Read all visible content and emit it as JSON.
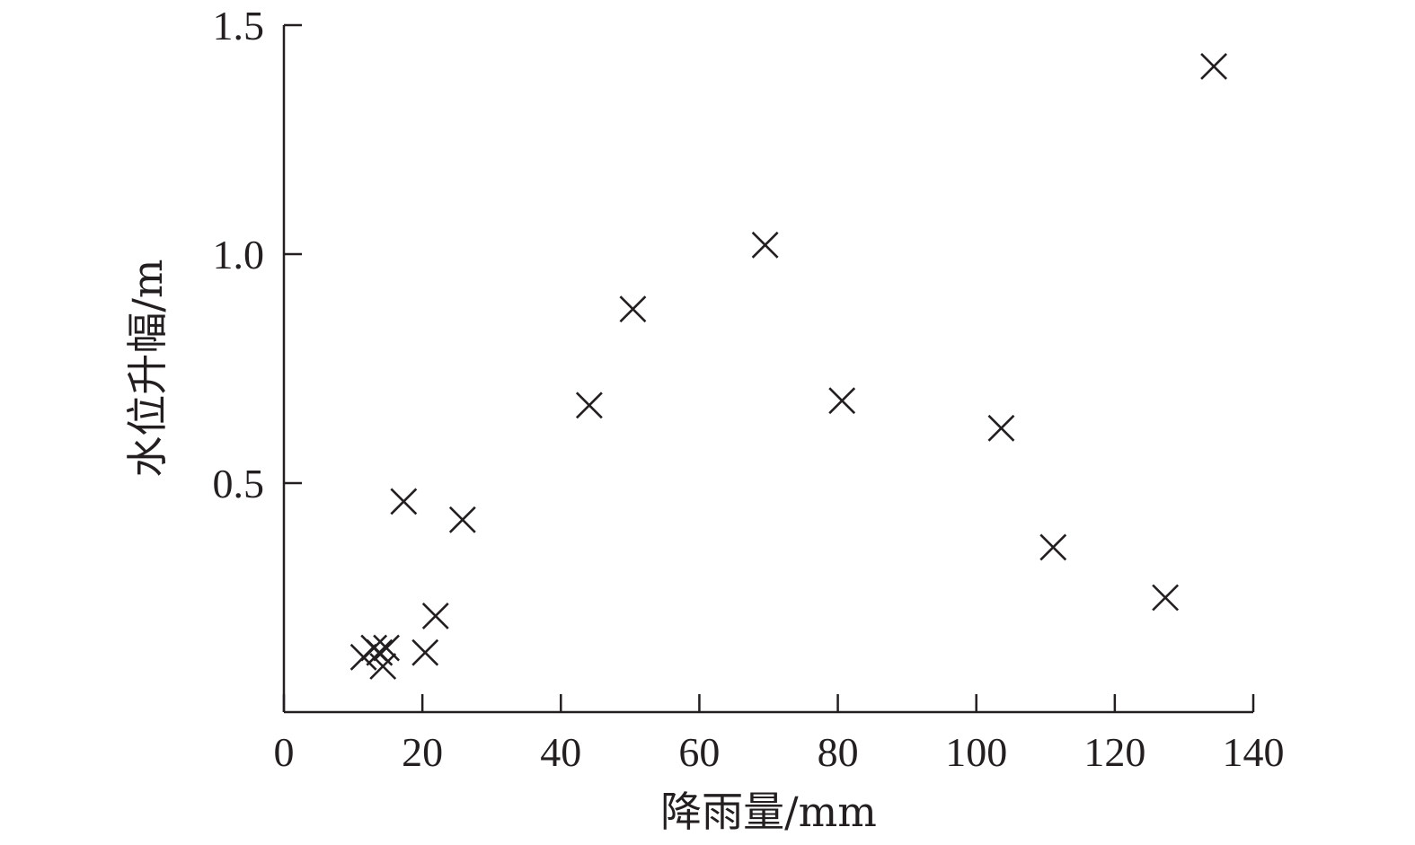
{
  "chart_data": {
    "type": "scatter",
    "title": "",
    "xlabel": "降雨量/mm",
    "ylabel": "水位升幅/m",
    "xlim": [
      0,
      140
    ],
    "ylim": [
      0,
      1.5
    ],
    "x_ticks": [
      0,
      20,
      40,
      60,
      80,
      100,
      120,
      140
    ],
    "x_tick_labels": [
      "0",
      "20",
      "40",
      "60",
      "80",
      "100",
      "120",
      "140"
    ],
    "y_ticks": [
      0.5,
      1.0,
      1.5
    ],
    "y_tick_labels": [
      "0.5",
      "1.0",
      "1.5"
    ],
    "grid": false,
    "marker": "x",
    "marker_color": "#231f20",
    "series": [
      {
        "points": [
          {
            "x": 11.5,
            "y": 0.12
          },
          {
            "x": 13.0,
            "y": 0.14
          },
          {
            "x": 13.8,
            "y": 0.13
          },
          {
            "x": 14.3,
            "y": 0.1
          },
          {
            "x": 14.8,
            "y": 0.14
          },
          {
            "x": 17.3,
            "y": 0.46
          },
          {
            "x": 20.4,
            "y": 0.13
          },
          {
            "x": 21.9,
            "y": 0.21
          },
          {
            "x": 25.8,
            "y": 0.42
          },
          {
            "x": 44.1,
            "y": 0.67
          },
          {
            "x": 50.4,
            "y": 0.88
          },
          {
            "x": 69.5,
            "y": 1.02
          },
          {
            "x": 80.6,
            "y": 0.68
          },
          {
            "x": 103.6,
            "y": 0.62
          },
          {
            "x": 111.1,
            "y": 0.36
          },
          {
            "x": 127.3,
            "y": 0.25
          },
          {
            "x": 134.3,
            "y": 1.41
          }
        ]
      }
    ]
  }
}
